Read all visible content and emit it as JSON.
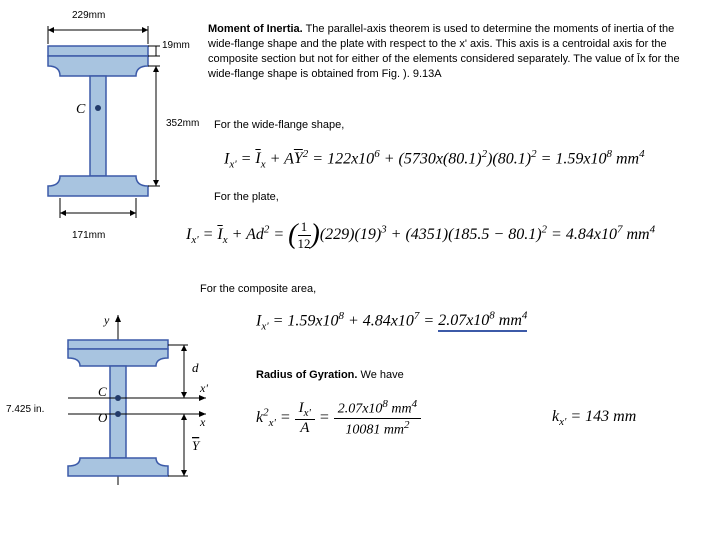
{
  "dims": {
    "top_width": "229mm",
    "top_plate": "19mm",
    "web_height": "352mm",
    "bottom_width": "171mm",
    "second_left": "7.425 in."
  },
  "labels": {
    "centroid": "C",
    "origin": "O",
    "y_axis": "y",
    "x_axis": "x",
    "xprime_axis": "x'",
    "d_label": "d",
    "ybar_label": "Y̅"
  },
  "text": {
    "moi_title": "Moment of Inertia.",
    "moi_body": " The parallel-axis theorem is used to determine the moments of inertia of the wide-flange shape and the plate with respect to the x' axis. This axis is a centroidal axis for the composite section but not for either of the elements considered separately. The value of Īx for the wide-flange shape is obtained from Fig. ). 9.13A",
    "wide_flange": "For the wide-flange shape,",
    "plate": "For the plate,",
    "composite": "For the composite area,",
    "rog_title": "Radius of Gyration.",
    "rog_body": "  We have"
  },
  "formulas": {
    "f1": "I<sub>x'</sub> = <span class='overbar'>I</span><sub>x</sub> + A<span class='overbar'>Y</span><sup>2</sup> = 122x10<sup>6</sup> + (5730x(80.1)<sup>2</sup>)(80.1)<sup>2</sup> = 1.59x10<sup>8</sup> mm<sup>4</sup>",
    "f2_left": "I<sub>x'</sub> = <span class='overbar'>I</span><sub>x</sub> + Ad<sup>2</sup> = ",
    "f2_frac_top": "1",
    "f2_frac_bot": "12",
    "f2_right": "(229)(19)<sup>3</sup> + (4351)(185.5 − 80.1)<sup>2</sup> = 4.84x10<sup>7</sup> mm<sup>4</sup>",
    "f3": "I<sub>x'</sub> = 1.59x10<sup>8</sup> + 4.84x10<sup>7</sup> = <span class='underline-blue'>2.07x10<sup>8</sup> mm<sup>4</sup></span>",
    "f4_left": "k<sup>2</sup><sub>x'</sub> = ",
    "f4_frac1_top": "I<sub>x'</sub>",
    "f4_frac1_bot": "A",
    "f4_mid": " = ",
    "f4_frac2_top": "2.07x10<sup>8</sup> mm<sup>4</sup>",
    "f4_frac2_bot": "10081 mm<sup>2</sup>",
    "f5": "k<sub>x'</sub> = 143 mm"
  },
  "colors": {
    "beam_fill": "#a8c4e0",
    "beam_outline": "#3c5aa8",
    "text": "#000000"
  }
}
